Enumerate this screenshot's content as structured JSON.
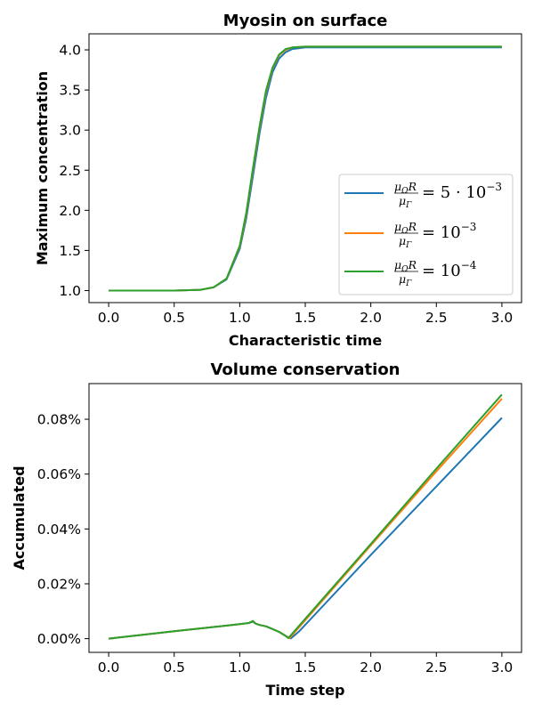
{
  "chart_data": [
    {
      "type": "line",
      "title": "Myosin on surface",
      "xlabel": "Characteristic time",
      "ylabel": "Maximum concentration",
      "xlim": [
        -0.15,
        3.15
      ],
      "ylim": [
        0.85,
        4.2
      ],
      "xticks": [
        0.0,
        0.5,
        1.0,
        1.5,
        2.0,
        2.5,
        3.0
      ],
      "xtick_labels": [
        "0.0",
        "0.5",
        "1.0",
        "1.5",
        "2.0",
        "2.5",
        "3.0"
      ],
      "yticks": [
        1.0,
        1.5,
        2.0,
        2.5,
        3.0,
        3.5,
        4.0
      ],
      "ytick_labels": [
        "1.0",
        "1.5",
        "2.0",
        "2.5",
        "3.0",
        "3.5",
        "4.0"
      ],
      "grid": false,
      "legend_position": "lower-right",
      "series": [
        {
          "name": "μΩR/μΓ = 5·10^-3",
          "color": "#1f77b4",
          "x": [
            0.0,
            0.5,
            0.7,
            0.8,
            0.9,
            1.0,
            1.05,
            1.1,
            1.15,
            1.2,
            1.25,
            1.3,
            1.35,
            1.4,
            1.5,
            1.7,
            2.0,
            3.0
          ],
          "y": [
            1.0,
            1.0,
            1.01,
            1.04,
            1.14,
            1.52,
            1.9,
            2.42,
            2.95,
            3.4,
            3.72,
            3.89,
            3.97,
            4.01,
            4.03,
            4.03,
            4.03,
            4.03
          ]
        },
        {
          "name": "μΩR/μΓ = 10^-3",
          "color": "#ff7f0e",
          "x": [
            0.0,
            0.5,
            0.7,
            0.8,
            0.9,
            1.0,
            1.05,
            1.1,
            1.15,
            1.2,
            1.25,
            1.3,
            1.35,
            1.4,
            1.5,
            1.7,
            2.0,
            3.0
          ],
          "y": [
            1.0,
            1.0,
            1.01,
            1.04,
            1.15,
            1.55,
            1.95,
            2.5,
            3.02,
            3.47,
            3.77,
            3.93,
            4.0,
            4.03,
            4.04,
            4.04,
            4.04,
            4.04
          ]
        },
        {
          "name": "μΩR/μΓ = 10^-4",
          "color": "#2ca02c",
          "x": [
            0.0,
            0.5,
            0.7,
            0.8,
            0.9,
            1.0,
            1.05,
            1.1,
            1.15,
            1.2,
            1.25,
            1.3,
            1.35,
            1.4,
            1.5,
            1.7,
            2.0,
            3.0
          ],
          "y": [
            1.0,
            1.0,
            1.01,
            1.04,
            1.15,
            1.56,
            1.97,
            2.52,
            3.04,
            3.49,
            3.78,
            3.94,
            4.01,
            4.03,
            4.04,
            4.04,
            4.04,
            4.04
          ]
        }
      ]
    },
    {
      "type": "line",
      "title": "Volume conservation",
      "xlabel": "Time step",
      "ylabel": "Accumulated",
      "xlim": [
        -0.15,
        3.15
      ],
      "ylim": [
        -0.005,
        0.093
      ],
      "xticks": [
        0.0,
        0.5,
        1.0,
        1.5,
        2.0,
        2.5,
        3.0
      ],
      "xtick_labels": [
        "0.0",
        "0.5",
        "1.0",
        "1.5",
        "2.0",
        "2.5",
        "3.0"
      ],
      "yticks": [
        0.0,
        0.02,
        0.04,
        0.06,
        0.08
      ],
      "ytick_labels": [
        "0.00%",
        "0.02%",
        "0.04%",
        "0.06%",
        "0.08%"
      ],
      "grid": false,
      "legend_position": "none",
      "series": [
        {
          "color": "#1f77b4",
          "x": [
            0.0,
            0.5,
            1.0,
            1.07,
            1.1,
            1.12,
            1.15,
            1.2,
            1.25,
            1.3,
            1.35,
            1.39,
            1.45,
            2.0,
            2.5,
            3.0
          ],
          "y": [
            0.0,
            0.0027,
            0.0053,
            0.0057,
            0.0062,
            0.0055,
            0.005,
            0.0045,
            0.0035,
            0.0025,
            0.001,
            0.0001,
            0.0025,
            0.0305,
            0.0555,
            0.0805
          ]
        },
        {
          "color": "#ff7f0e",
          "x": [
            0.0,
            0.5,
            1.0,
            1.07,
            1.1,
            1.12,
            1.15,
            1.2,
            1.25,
            1.3,
            1.35,
            1.38,
            1.45,
            2.0,
            2.5,
            3.0
          ],
          "y": [
            0.0,
            0.0027,
            0.0053,
            0.0057,
            0.0064,
            0.0055,
            0.005,
            0.0045,
            0.0035,
            0.0025,
            0.001,
            0.0002,
            0.004,
            0.034,
            0.061,
            0.0875
          ]
        },
        {
          "color": "#2ca02c",
          "x": [
            0.0,
            0.5,
            1.0,
            1.07,
            1.1,
            1.12,
            1.15,
            1.2,
            1.25,
            1.3,
            1.35,
            1.37,
            1.45,
            2.0,
            2.5,
            3.0
          ],
          "y": [
            0.0,
            0.0027,
            0.0053,
            0.0057,
            0.0065,
            0.0055,
            0.005,
            0.0045,
            0.0035,
            0.0025,
            0.001,
            0.0002,
            0.0045,
            0.0345,
            0.062,
            0.089
          ]
        }
      ]
    }
  ]
}
